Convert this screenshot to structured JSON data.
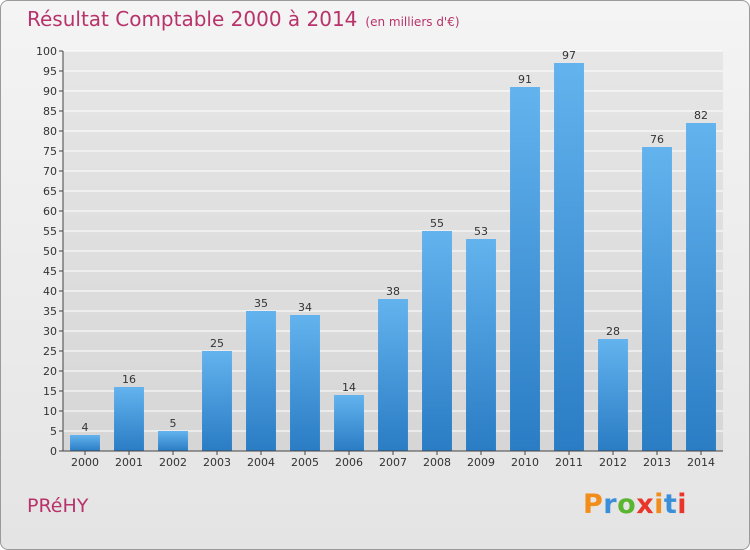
{
  "chart_data": {
    "type": "bar",
    "title": "Résultat Comptable 2000 à 2014",
    "subtitle": "(en milliers d'€)",
    "categories": [
      "2000",
      "2001",
      "2002",
      "2003",
      "2004",
      "2005",
      "2006",
      "2007",
      "2008",
      "2009",
      "2010",
      "2011",
      "2012",
      "2013",
      "2014"
    ],
    "values": [
      4,
      16,
      5,
      25,
      35,
      34,
      14,
      38,
      55,
      53,
      91,
      97,
      28,
      76,
      82
    ],
    "ylim": [
      0,
      100
    ],
    "yticks": [
      0,
      5,
      10,
      15,
      20,
      25,
      30,
      35,
      40,
      45,
      50,
      55,
      60,
      65,
      70,
      75,
      80,
      85,
      90,
      95,
      100
    ],
    "grid": true,
    "xlabel": "",
    "ylabel": ""
  },
  "footer": {
    "commune": "PRéHY",
    "logo": "Proxiti"
  },
  "colors": {
    "title": "#b8336a",
    "bar_light": "#63b3ee",
    "bar_dark": "#2a7cc4",
    "grid": "#ffffff",
    "logo_letters": [
      "#f28c1a",
      "#3a8fd8",
      "#5bb531",
      "#e8362b",
      "#f28c1a",
      "#3a8fd8",
      "#e8362b"
    ]
  }
}
